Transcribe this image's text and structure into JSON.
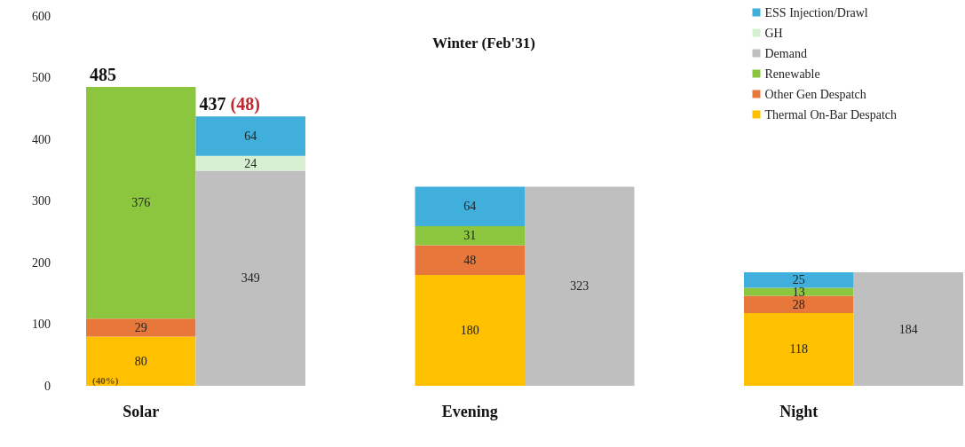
{
  "chart_data": {
    "type": "bar",
    "title": "Winter (Feb'31)",
    "stacked": true,
    "data_labels": true,
    "legend": "top right",
    "grid": false,
    "categories": [
      "Solar",
      null,
      null,
      "Evening",
      null,
      null,
      "Night",
      null
    ],
    "series": [
      {
        "name": "Thermal On-Bar Despatch",
        "color": "#ffc000",
        "values": [
          80,
          null,
          null,
          180,
          null,
          null,
          118,
          null
        ]
      },
      {
        "name": "Other Gen Despatch",
        "color": "#e8773c",
        "values": [
          29,
          null,
          null,
          48,
          null,
          null,
          28,
          null
        ]
      },
      {
        "name": "Renewable",
        "color": "#8cc63f",
        "values": [
          376,
          null,
          null,
          31,
          null,
          null,
          13,
          null
        ]
      },
      {
        "name": "Demand",
        "color": "#bfbfbf",
        "values": [
          null,
          349,
          null,
          null,
          323,
          null,
          null,
          184
        ]
      },
      {
        "name": "GH",
        "color": "#d8f0d2",
        "values": [
          null,
          24,
          null,
          null,
          null,
          null,
          null,
          null
        ]
      },
      {
        "name": "ESS Injection/Drawl",
        "color": "#41afdc",
        "values": [
          null,
          64,
          null,
          64,
          null,
          null,
          25,
          null
        ]
      }
    ],
    "totals": [
      "485",
      "437 (48)",
      null,
      null,
      null,
      null,
      null,
      null
    ],
    "annotations": [
      "(40%)"
    ],
    "ylim": [
      0,
      600
    ],
    "yticks": [
      0,
      100,
      200,
      300,
      400,
      500,
      600
    ]
  }
}
